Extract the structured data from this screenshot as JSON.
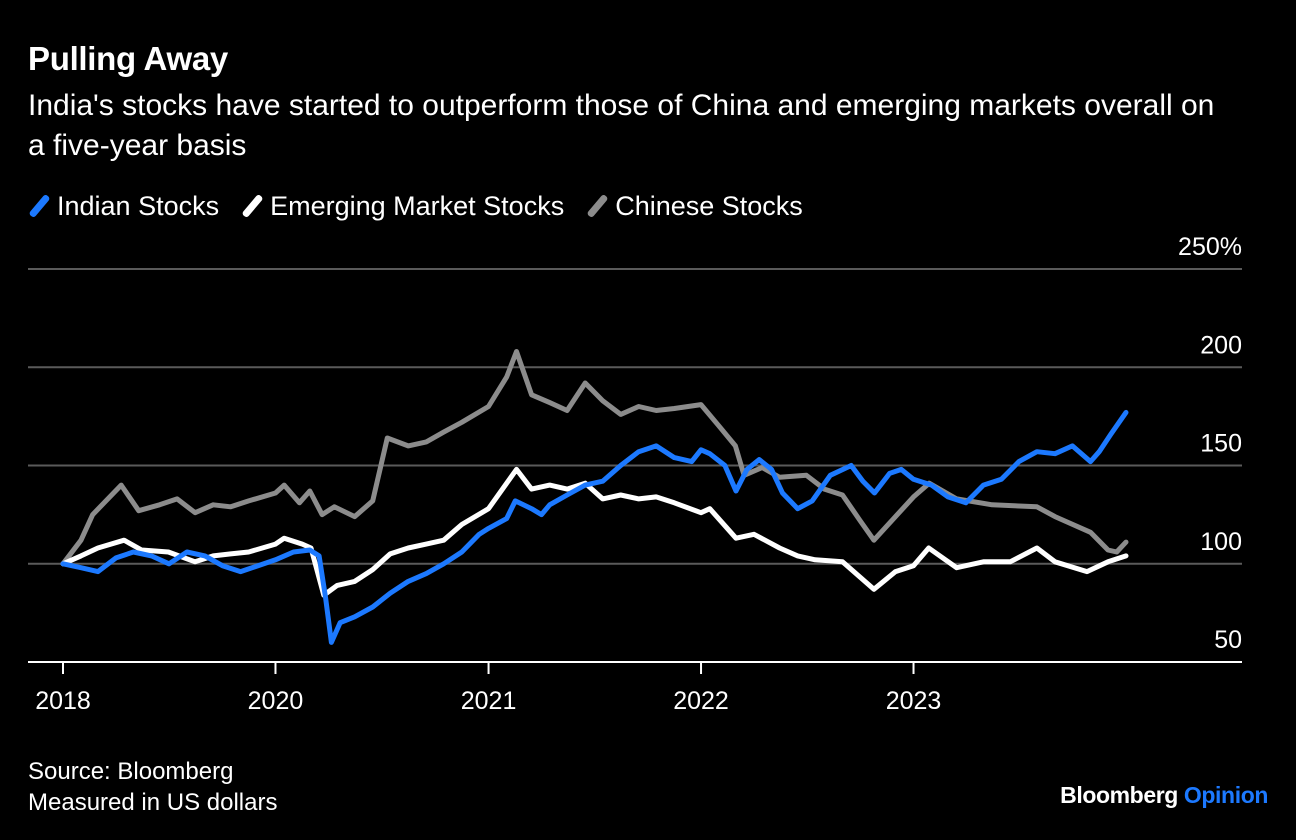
{
  "header": {
    "title": "Pulling Away",
    "subtitle": "India's stocks have started to outperform those of China and emerging markets overall on a five-year basis"
  },
  "legend": [
    {
      "label": "Indian Stocks",
      "color": "#1c79ff"
    },
    {
      "label": "Emerging Market Stocks",
      "color": "#ffffff"
    },
    {
      "label": "Chinese Stocks",
      "color": "#8c8c8c"
    }
  ],
  "footer": {
    "source": "Source: Bloomberg",
    "note": "Measured in US dollars"
  },
  "brand": {
    "name": "Bloomberg",
    "suffix": "Opinion"
  },
  "chart_data": {
    "type": "line",
    "title": "Pulling Away",
    "subtitle": "India's stocks have started to outperform those of China and emerging markets overall on a five-year basis",
    "x_ticks": [
      {
        "date": "2018-12-31",
        "label": "2018"
      },
      {
        "date": "2019-12-31",
        "label": "2020"
      },
      {
        "date": "2020-12-31",
        "label": "2021"
      },
      {
        "date": "2021-12-31",
        "label": "2022"
      },
      {
        "date": "2022-12-31",
        "label": "2023"
      }
    ],
    "y_ticks": [
      {
        "value": 50,
        "label": "50"
      },
      {
        "value": 100,
        "label": "100"
      },
      {
        "value": 150,
        "label": "150"
      },
      {
        "value": 200,
        "label": "200"
      },
      {
        "value": 250,
        "label": "250%"
      }
    ],
    "ylim": [
      50,
      250
    ],
    "xlim": [
      "2018-12-31",
      "2023-12-31"
    ],
    "grid": "horizontal",
    "legend_position": "top-left",
    "series": [
      {
        "name": "Indian Stocks",
        "color": "#1c79ff",
        "points": [
          [
            "2018-12-31",
            100
          ],
          [
            "2019-01-31",
            98
          ],
          [
            "2019-03-01",
            96
          ],
          [
            "2019-04-01",
            103
          ],
          [
            "2019-05-01",
            106
          ],
          [
            "2019-06-01",
            104
          ],
          [
            "2019-07-01",
            100
          ],
          [
            "2019-08-01",
            106
          ],
          [
            "2019-09-01",
            104
          ],
          [
            "2019-10-01",
            99
          ],
          [
            "2019-11-01",
            96
          ],
          [
            "2019-12-01",
            99
          ],
          [
            "2019-12-31",
            102
          ],
          [
            "2020-01-31",
            106
          ],
          [
            "2020-02-28",
            107
          ],
          [
            "2020-03-15",
            104
          ],
          [
            "2020-03-26",
            83
          ],
          [
            "2020-04-05",
            60
          ],
          [
            "2020-04-20",
            70
          ],
          [
            "2020-05-15",
            73
          ],
          [
            "2020-06-15",
            78
          ],
          [
            "2020-07-15",
            85
          ],
          [
            "2020-08-15",
            91
          ],
          [
            "2020-09-15",
            95
          ],
          [
            "2020-10-15",
            100
          ],
          [
            "2020-11-15",
            106
          ],
          [
            "2020-12-15",
            115
          ],
          [
            "2020-12-31",
            118
          ],
          [
            "2021-01-31",
            123
          ],
          [
            "2021-02-15",
            132
          ],
          [
            "2021-03-15",
            128
          ],
          [
            "2021-04-01",
            125
          ],
          [
            "2021-04-15",
            130
          ],
          [
            "2021-05-15",
            135
          ],
          [
            "2021-06-15",
            140
          ],
          [
            "2021-07-15",
            142
          ],
          [
            "2021-08-15",
            150
          ],
          [
            "2021-09-15",
            157
          ],
          [
            "2021-10-15",
            160
          ],
          [
            "2021-11-15",
            154
          ],
          [
            "2021-12-15",
            152
          ],
          [
            "2021-12-31",
            158
          ],
          [
            "2022-01-15",
            156
          ],
          [
            "2022-02-10",
            150
          ],
          [
            "2022-03-01",
            137
          ],
          [
            "2022-03-20",
            148
          ],
          [
            "2022-04-10",
            153
          ],
          [
            "2022-05-01",
            148
          ],
          [
            "2022-05-20",
            136
          ],
          [
            "2022-06-15",
            128
          ],
          [
            "2022-07-10",
            132
          ],
          [
            "2022-08-10",
            145
          ],
          [
            "2022-09-15",
            150
          ],
          [
            "2022-10-05",
            142
          ],
          [
            "2022-10-25",
            136
          ],
          [
            "2022-11-20",
            146
          ],
          [
            "2022-12-10",
            148
          ],
          [
            "2022-12-31",
            143
          ],
          [
            "2023-01-31",
            140
          ],
          [
            "2023-02-28",
            134
          ],
          [
            "2023-03-31",
            131
          ],
          [
            "2023-04-30",
            140
          ],
          [
            "2023-05-31",
            143
          ],
          [
            "2023-06-30",
            152
          ],
          [
            "2023-07-31",
            157
          ],
          [
            "2023-08-31",
            156
          ],
          [
            "2023-09-30",
            160
          ],
          [
            "2023-10-31",
            152
          ],
          [
            "2023-11-15",
            157
          ],
          [
            "2023-12-05",
            166
          ],
          [
            "2023-12-31",
            177
          ]
        ]
      },
      {
        "name": "Emerging Market Stocks",
        "color": "#ffffff",
        "points": [
          [
            "2018-12-31",
            100
          ],
          [
            "2019-01-31",
            104
          ],
          [
            "2019-03-01",
            108
          ],
          [
            "2019-04-15",
            112
          ],
          [
            "2019-05-15",
            107
          ],
          [
            "2019-06-30",
            106
          ],
          [
            "2019-08-15",
            101
          ],
          [
            "2019-09-15",
            104
          ],
          [
            "2019-10-15",
            105
          ],
          [
            "2019-11-15",
            106
          ],
          [
            "2019-12-31",
            110
          ],
          [
            "2020-01-15",
            113
          ],
          [
            "2020-02-15",
            110
          ],
          [
            "2020-03-01",
            108
          ],
          [
            "2020-03-23",
            84
          ],
          [
            "2020-04-15",
            89
          ],
          [
            "2020-05-15",
            91
          ],
          [
            "2020-06-15",
            97
          ],
          [
            "2020-07-15",
            105
          ],
          [
            "2020-08-15",
            108
          ],
          [
            "2020-09-15",
            110
          ],
          [
            "2020-10-15",
            112
          ],
          [
            "2020-11-15",
            120
          ],
          [
            "2020-12-31",
            128
          ],
          [
            "2021-02-17",
            148
          ],
          [
            "2021-03-15",
            138
          ],
          [
            "2021-04-15",
            140
          ],
          [
            "2021-05-15",
            138
          ],
          [
            "2021-06-15",
            141
          ],
          [
            "2021-07-15",
            133
          ],
          [
            "2021-08-15",
            135
          ],
          [
            "2021-09-15",
            133
          ],
          [
            "2021-10-15",
            134
          ],
          [
            "2021-11-15",
            131
          ],
          [
            "2021-12-31",
            126
          ],
          [
            "2022-01-15",
            128
          ],
          [
            "2022-03-01",
            113
          ],
          [
            "2022-04-01",
            115
          ],
          [
            "2022-05-15",
            108
          ],
          [
            "2022-06-15",
            104
          ],
          [
            "2022-07-15",
            102
          ],
          [
            "2022-08-31",
            101
          ],
          [
            "2022-10-24",
            87
          ],
          [
            "2022-11-30",
            96
          ],
          [
            "2022-12-31",
            99
          ],
          [
            "2023-01-26",
            108
          ],
          [
            "2023-03-15",
            98
          ],
          [
            "2023-04-30",
            101
          ],
          [
            "2023-06-15",
            101
          ],
          [
            "2023-07-31",
            108
          ],
          [
            "2023-08-31",
            101
          ],
          [
            "2023-10-25",
            96
          ],
          [
            "2023-11-30",
            101
          ],
          [
            "2023-12-31",
            104
          ]
        ]
      },
      {
        "name": "Chinese Stocks",
        "color": "#8c8c8c",
        "points": [
          [
            "2018-12-31",
            100
          ],
          [
            "2019-01-31",
            112
          ],
          [
            "2019-02-20",
            125
          ],
          [
            "2019-04-10",
            140
          ],
          [
            "2019-05-10",
            127
          ],
          [
            "2019-06-15",
            130
          ],
          [
            "2019-07-15",
            133
          ],
          [
            "2019-08-15",
            126
          ],
          [
            "2019-09-15",
            130
          ],
          [
            "2019-10-15",
            129
          ],
          [
            "2019-11-15",
            132
          ],
          [
            "2019-12-31",
            136
          ],
          [
            "2020-01-15",
            140
          ],
          [
            "2020-02-10",
            131
          ],
          [
            "2020-02-28",
            137
          ],
          [
            "2020-03-20",
            125
          ],
          [
            "2020-04-10",
            129
          ],
          [
            "2020-05-15",
            124
          ],
          [
            "2020-06-15",
            132
          ],
          [
            "2020-07-10",
            164
          ],
          [
            "2020-08-15",
            160
          ],
          [
            "2020-09-15",
            162
          ],
          [
            "2020-10-15",
            167
          ],
          [
            "2020-11-15",
            172
          ],
          [
            "2020-12-31",
            180
          ],
          [
            "2021-01-31",
            195
          ],
          [
            "2021-02-17",
            208
          ],
          [
            "2021-03-15",
            186
          ],
          [
            "2021-04-15",
            182
          ],
          [
            "2021-05-15",
            178
          ],
          [
            "2021-06-15",
            192
          ],
          [
            "2021-07-15",
            183
          ],
          [
            "2021-08-15",
            176
          ],
          [
            "2021-09-15",
            180
          ],
          [
            "2021-10-15",
            178
          ],
          [
            "2021-11-15",
            179
          ],
          [
            "2021-12-31",
            181
          ],
          [
            "2022-01-31",
            170
          ],
          [
            "2022-02-28",
            160
          ],
          [
            "2022-03-15",
            145
          ],
          [
            "2022-04-15",
            149
          ],
          [
            "2022-05-15",
            144
          ],
          [
            "2022-06-30",
            145
          ],
          [
            "2022-07-31",
            138
          ],
          [
            "2022-08-31",
            135
          ],
          [
            "2022-09-30",
            122
          ],
          [
            "2022-10-24",
            112
          ],
          [
            "2022-11-30",
            124
          ],
          [
            "2022-12-31",
            134
          ],
          [
            "2023-01-27",
            141
          ],
          [
            "2023-03-15",
            133
          ],
          [
            "2023-05-15",
            130
          ],
          [
            "2023-07-31",
            129
          ],
          [
            "2023-08-31",
            124
          ],
          [
            "2023-10-31",
            116
          ],
          [
            "2023-11-30",
            107
          ],
          [
            "2023-12-15",
            106
          ],
          [
            "2023-12-31",
            111
          ]
        ]
      }
    ]
  }
}
